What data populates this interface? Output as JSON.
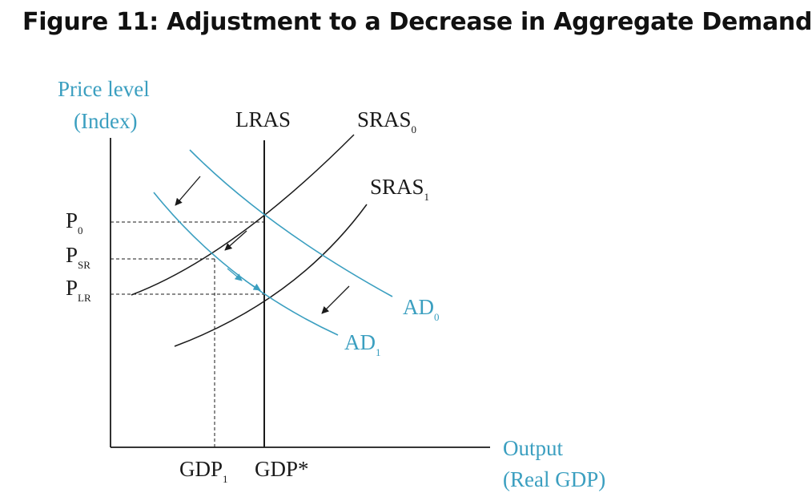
{
  "title": "Figure 11: Adjustment to a Decrease in Aggregate Demand",
  "axes": {
    "y_label_line1": "Price level",
    "y_label_line2": "(Index)",
    "x_label_line1": "Output",
    "x_label_line2": "(Real GDP)"
  },
  "curves": {
    "lras": "LRAS",
    "sras0": {
      "base": "SRAS",
      "sub": "0"
    },
    "sras1": {
      "base": "SRAS",
      "sub": "1"
    },
    "ad0": {
      "base": "AD",
      "sub": "0"
    },
    "ad1": {
      "base": "AD",
      "sub": "1"
    }
  },
  "price_levels": {
    "p0": {
      "base": "P",
      "sub": "0"
    },
    "psr": {
      "base": "P",
      "sub": "SR"
    },
    "plr": {
      "base": "P",
      "sub": "LR"
    }
  },
  "output_levels": {
    "gdp1": {
      "base": "GDP",
      "sub": "1"
    },
    "gdp_star": "GDP*"
  },
  "colors": {
    "ad_curves": "#3b9fc0",
    "sras_curves": "#1a1a1a",
    "axis_labels": "#3b9fc0"
  }
}
